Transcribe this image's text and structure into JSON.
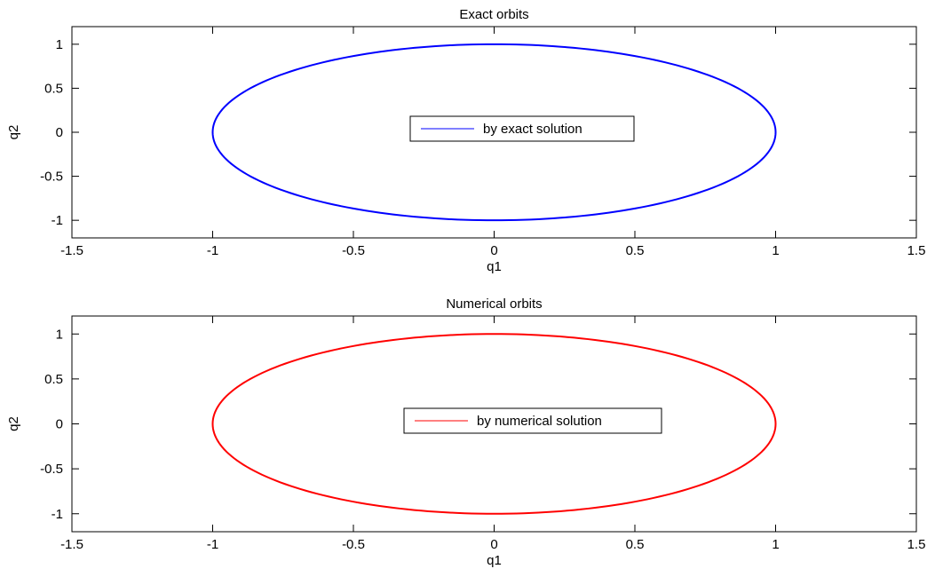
{
  "chart_data": [
    {
      "type": "line",
      "title": "Exact orbits",
      "xlabel": "q1",
      "ylabel": "q2",
      "xlim": [
        -1.5,
        1.5
      ],
      "ylim": [
        -1.2,
        1.2
      ],
      "xticks": [
        -1.5,
        -1,
        -0.5,
        0,
        0.5,
        1,
        1.5
      ],
      "yticks": [
        -1,
        -0.5,
        0,
        0.5,
        1
      ],
      "xtick_labels": [
        "-1.5",
        "-1",
        "-0.5",
        "0",
        "0.5",
        "1",
        "1.5"
      ],
      "ytick_labels": [
        "-1",
        "-0.5",
        "0",
        "0.5",
        "1"
      ],
      "grid": false,
      "legend_position": "center",
      "series": [
        {
          "name": "by exact solution",
          "color": "#0000ff",
          "x": [
            1,
            0.866,
            0.5,
            0,
            -0.5,
            -0.866,
            -1,
            -0.866,
            -0.5,
            0,
            0.5,
            0.866,
            1
          ],
          "y": [
            0,
            0.5,
            0.866,
            1,
            0.866,
            0.5,
            0,
            -0.5,
            -0.866,
            -1,
            -0.866,
            -0.5,
            0
          ]
        }
      ]
    },
    {
      "type": "line",
      "title": "Numerical orbits",
      "xlabel": "q1",
      "ylabel": "q2",
      "xlim": [
        -1.5,
        1.5
      ],
      "ylim": [
        -1.2,
        1.2
      ],
      "xticks": [
        -1.5,
        -1,
        -0.5,
        0,
        0.5,
        1,
        1.5
      ],
      "yticks": [
        -1,
        -0.5,
        0,
        0.5,
        1
      ],
      "xtick_labels": [
        "-1.5",
        "-1",
        "-0.5",
        "0",
        "0.5",
        "1",
        "1.5"
      ],
      "ytick_labels": [
        "-1",
        "-0.5",
        "0",
        "0.5",
        "1"
      ],
      "grid": false,
      "legend_position": "center",
      "series": [
        {
          "name": "by numerical solution",
          "color": "#ff0000",
          "x": [
            1,
            0.866,
            0.5,
            0,
            -0.5,
            -0.866,
            -1,
            -0.866,
            -0.5,
            0,
            0.5,
            0.866,
            1
          ],
          "y": [
            0,
            0.5,
            0.866,
            1,
            0.866,
            0.5,
            0,
            -0.5,
            -0.866,
            -1,
            -0.866,
            -0.5,
            0
          ]
        }
      ]
    }
  ]
}
